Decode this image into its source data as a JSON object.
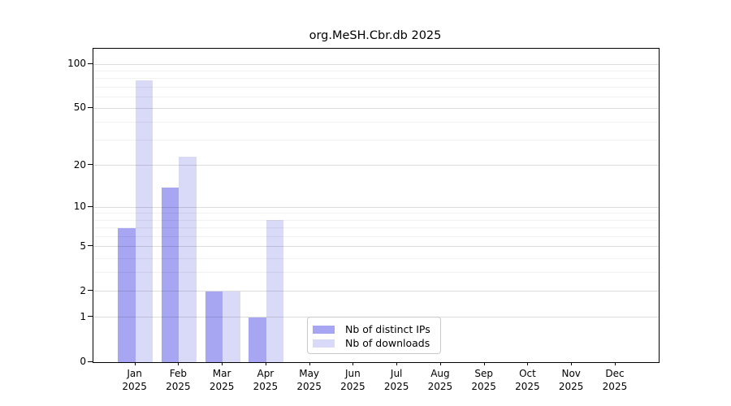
{
  "chart_data": {
    "type": "bar",
    "title": "org.MeSH.Cbr.db 2025",
    "categories": [
      "Jan",
      "Feb",
      "Mar",
      "Apr",
      "May",
      "Jun",
      "Jul",
      "Aug",
      "Sep",
      "Oct",
      "Nov",
      "Dec"
    ],
    "category_year": "2025",
    "series": [
      {
        "name": "Nb of distinct IPs",
        "color": "#a6a6f2",
        "values": [
          7,
          14,
          2,
          1,
          0,
          0,
          0,
          0,
          0,
          0,
          0,
          0
        ]
      },
      {
        "name": "Nb of downloads",
        "color": "#d9d9f8",
        "values": [
          78,
          23,
          2,
          8,
          0,
          0,
          0,
          0,
          0,
          0,
          0,
          0
        ]
      }
    ],
    "yscale": "log1p",
    "ylabel": "",
    "xlabel": "",
    "y_major_ticks": [
      0,
      1,
      2,
      5,
      10,
      20,
      50,
      100
    ],
    "y_minor_ticks": [
      3,
      4,
      6,
      7,
      8,
      9,
      30,
      40,
      60,
      70,
      80,
      90
    ],
    "ylim": [
      0,
      127
    ],
    "grid": "horizontal major and minor gridlines, drawn above bars",
    "legend_position": "lower center inside plot",
    "colors": {
      "background": "#ffffff",
      "axis": "#000000",
      "grid_major": "#dddddd",
      "grid_minor": "#f1f1f1",
      "legend_border": "#c9c9c9"
    }
  }
}
